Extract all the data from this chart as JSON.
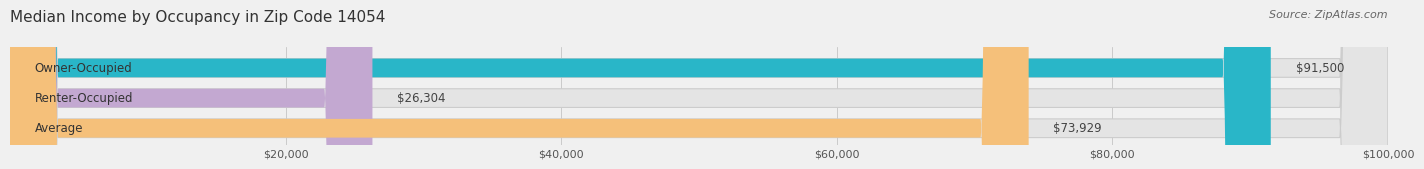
{
  "title": "Median Income by Occupancy in Zip Code 14054",
  "source": "Source: ZipAtlas.com",
  "categories": [
    "Owner-Occupied",
    "Renter-Occupied",
    "Average"
  ],
  "values": [
    91500,
    26304,
    73929
  ],
  "bar_colors": [
    "#29b6c8",
    "#c3a8d1",
    "#f5c07a"
  ],
  "bar_labels": [
    "$91,500",
    "$26,304",
    "$73,929"
  ],
  "xlim": [
    0,
    100000
  ],
  "xticks": [
    0,
    20000,
    40000,
    60000,
    80000,
    100000
  ],
  "xtick_labels": [
    "",
    "$20,000",
    "$40,000",
    "$60,000",
    "$80,000",
    "$100,000"
  ],
  "background_color": "#f0f0f0",
  "bar_background": "#e4e4e4",
  "title_fontsize": 11,
  "source_fontsize": 8,
  "label_fontsize": 8.5,
  "tick_fontsize": 8
}
